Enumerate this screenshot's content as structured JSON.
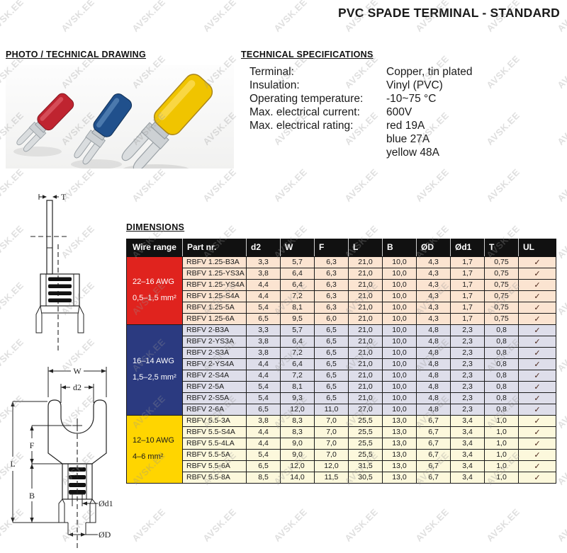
{
  "watermark": {
    "text": "AVSK.EE"
  },
  "title": "PVC SPADE TERMINAL - STANDARD",
  "sections": {
    "photo": {
      "heading": "PHOTO / TECHNICAL DRAWING"
    },
    "specs": {
      "heading": "TECHNICAL SPECIFICATIONS",
      "rows": [
        {
          "label": "Terminal:",
          "value": "Copper, tin plated"
        },
        {
          "label": "Insulation:",
          "value": "Vinyl (PVC)"
        },
        {
          "label": "Operating temperature:",
          "value": "-10~75 °C"
        },
        {
          "label": "Max. electrical current:",
          "value": "600V"
        },
        {
          "label": "Max. electrical rating:",
          "value": "red 19A"
        },
        {
          "label": "",
          "value": "blue 27A"
        },
        {
          "label": "",
          "value": "yellow 48A"
        }
      ]
    },
    "dimensions": {
      "heading": "DIMENSIONS"
    }
  },
  "drawing_labels": {
    "t": "T",
    "w": "W",
    "d2": "d2",
    "f": "F",
    "l": "L",
    "b": "B",
    "od1": "Ød1",
    "od": "ØD"
  },
  "colors": {
    "header_bg": "#111111",
    "red_group": "#e0231e",
    "red_rows": "#fbe4d1",
    "blue_group": "#2b3a80",
    "blue_rows": "#dedeea",
    "yellow_group": "#ffd500",
    "yellow_rows": "#fcf8dc",
    "check_mark": "#4a2518",
    "terminal_red": "#bf2430",
    "terminal_blue": "#20508c",
    "terminal_yellow": "#f0c400"
  },
  "table": {
    "headers": [
      "Wire range",
      "Part nr.",
      "d2",
      "W",
      "F",
      "L",
      "B",
      "ØD",
      "Ød1",
      "T",
      "UL"
    ],
    "check": "✓",
    "groups": [
      {
        "awg": "22–16 AWG",
        "mm2": "0,5–1,5 mm²",
        "color": "#e0231e",
        "text_color": "#ffffff",
        "row_bg": "#fbe4d1",
        "rows": [
          [
            "RBFV 1.25-B3A",
            "3,3",
            "5,7",
            "6,3",
            "21,0",
            "10,0",
            "4,3",
            "1,7",
            "0,75"
          ],
          [
            "RBFV 1.25-YS3A",
            "3,8",
            "6,4",
            "6,3",
            "21,0",
            "10,0",
            "4,3",
            "1,7",
            "0,75"
          ],
          [
            "RBFV 1.25-YS4A",
            "4,4",
            "6,4",
            "6,3",
            "21,0",
            "10,0",
            "4,3",
            "1,7",
            "0,75"
          ],
          [
            "RBFV 1.25-S4A",
            "4,4",
            "7,2",
            "6,3",
            "21,0",
            "10,0",
            "4,3",
            "1,7",
            "0,75"
          ],
          [
            "RBFV 1.25-5A",
            "5,4",
            "8,1",
            "6,3",
            "21,0",
            "10,0",
            "4,3",
            "1,7",
            "0,75"
          ],
          [
            "RBFV 1.25-6A",
            "6,5",
            "9,5",
            "6,0",
            "21,0",
            "10,0",
            "4,3",
            "1,7",
            "0,75"
          ]
        ]
      },
      {
        "awg": "16–14 AWG",
        "mm2": "1,5–2,5 mm²",
        "color": "#2b3a80",
        "text_color": "#ffffff",
        "row_bg": "#dedeea",
        "rows": [
          [
            "RBFV 2-B3A",
            "3,3",
            "5,7",
            "6,5",
            "21,0",
            "10,0",
            "4,8",
            "2,3",
            "0,8"
          ],
          [
            "RBFV 2-YS3A",
            "3,8",
            "6,4",
            "6,5",
            "21,0",
            "10,0",
            "4,8",
            "2,3",
            "0,8"
          ],
          [
            "RBFV 2-S3A",
            "3,8",
            "7,2",
            "6,5",
            "21,0",
            "10,0",
            "4,8",
            "2,3",
            "0,8"
          ],
          [
            "RBFV 2-YS4A",
            "4,4",
            "6,4",
            "6,5",
            "21,0",
            "10,0",
            "4,8",
            "2,3",
            "0,8"
          ],
          [
            "RBFV 2-S4A",
            "4,4",
            "7,2",
            "6,5",
            "21,0",
            "10,0",
            "4,8",
            "2,3",
            "0,8"
          ],
          [
            "RBFV 2-5A",
            "5,4",
            "8,1",
            "6,5",
            "21,0",
            "10,0",
            "4,8",
            "2,3",
            "0,8"
          ],
          [
            "RBFV 2-S5A",
            "5,4",
            "9,3",
            "6,5",
            "21,0",
            "10,0",
            "4,8",
            "2,3",
            "0,8"
          ],
          [
            "RBFV 2-6A",
            "6,5",
            "12,0",
            "11,0",
            "27,0",
            "10,0",
            "4,8",
            "2,3",
            "0,8"
          ]
        ]
      },
      {
        "awg": "12–10 AWG",
        "mm2": "4–6 mm²",
        "color": "#ffd500",
        "text_color": "#1a1a1a",
        "row_bg": "#fcf8dc",
        "rows": [
          [
            "RBFV 5.5-3A",
            "3,8",
            "8,3",
            "7,0",
            "25,5",
            "13,0",
            "6,7",
            "3,4",
            "1,0"
          ],
          [
            "RBFV 5.5-S4A",
            "4,4",
            "8,3",
            "7,0",
            "25,5",
            "13,0",
            "6,7",
            "3,4",
            "1,0"
          ],
          [
            "RBFV 5.5-4LA",
            "4,4",
            "9,0",
            "7,0",
            "25,5",
            "13,0",
            "6,7",
            "3,4",
            "1,0"
          ],
          [
            "RBFV 5.5-5A",
            "5,4",
            "9,0",
            "7,0",
            "25,5",
            "13,0",
            "6,7",
            "3,4",
            "1,0"
          ],
          [
            "RBFV 5.5-6A",
            "6,5",
            "12,0",
            "12,0",
            "31,5",
            "13,0",
            "6,7",
            "3,4",
            "1,0"
          ],
          [
            "RBFV 5.5-8A",
            "8,5",
            "14,0",
            "11,5",
            "30,5",
            "13,0",
            "6,7",
            "3,4",
            "1,0"
          ]
        ]
      }
    ]
  }
}
